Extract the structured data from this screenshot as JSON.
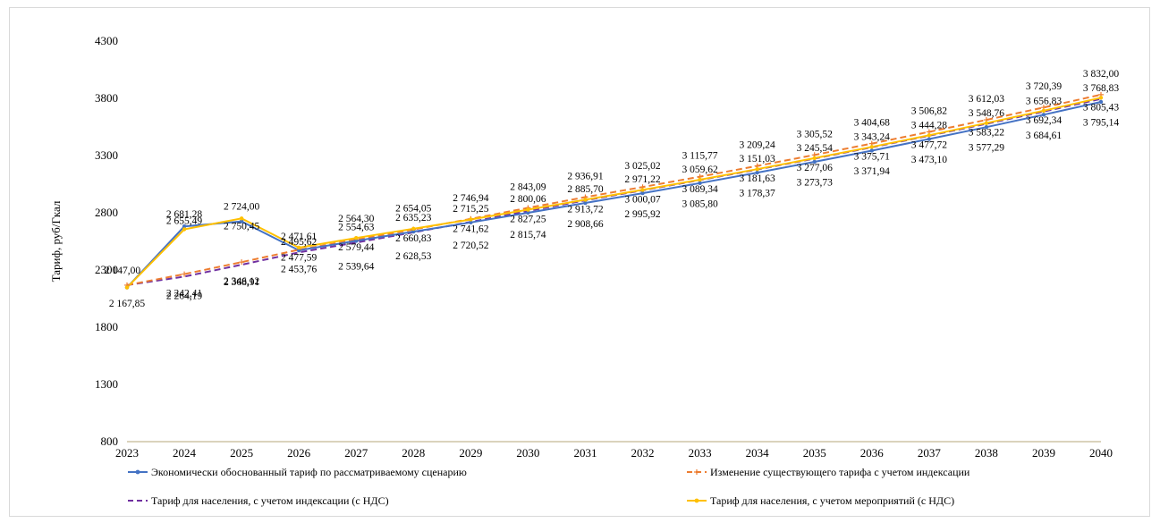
{
  "chart_data": {
    "type": "line",
    "title": "",
    "xlabel": "",
    "ylabel": "Тариф, руб/Гкал",
    "ylim": [
      800,
      4300
    ],
    "yticks": [
      800,
      1300,
      1800,
      2300,
      2800,
      3300,
      3800,
      4300
    ],
    "grid": false,
    "legend_position": "bottom",
    "x": [
      "2023",
      "2024",
      "2025",
      "2026",
      "2027",
      "2028",
      "2029",
      "2030",
      "2031",
      "2032",
      "2033",
      "2034",
      "2035",
      "2036",
      "2037",
      "2038",
      "2039",
      "2040"
    ],
    "series": [
      {
        "name": "Экономически обоснованный тариф по рассматриваемому сценарию",
        "color": "#4472c4",
        "style": "solid",
        "marker": "circle",
        "values": [
          2147.0,
          2681.28,
          2724.0,
          2471.61,
          2554.63,
          2635.23,
          2715.25,
          2800.06,
          2885.7,
          2971.22,
          3059.62,
          3151.03,
          3245.54,
          3343.24,
          3444.28,
          3548.76,
          3656.83,
          3768.83
        ],
        "labels": [
          "2 147,00",
          "2 681,28",
          "2 724,00",
          "2 471,61",
          "2 554,63",
          "2 635,23",
          "2 715,25",
          "2 800,06",
          "2 885,70",
          "2 971,22",
          "3 059,62",
          "3 151,03",
          "3 245,54",
          "3 343,24",
          "3 444,28",
          "3 548,76",
          "3 656,83",
          "3 768,83"
        ]
      },
      {
        "name": "Изменение существующего тарифа с учетом индексации",
        "color": "#ed7d31",
        "style": "dashed",
        "marker": "plus",
        "values": [
          2167.85,
          2264.19,
          2368.91,
          2477.59,
          2564.3,
          2654.05,
          2746.94,
          2843.09,
          2936.91,
          3025.02,
          3115.77,
          3209.24,
          3305.52,
          3404.68,
          3506.82,
          3612.03,
          3720.39,
          3832.0
        ],
        "labels": [
          "",
          "2 264,19",
          "2 368,91",
          "2 477,59",
          "2 564,30",
          "2 654,05",
          "2 746,94",
          "2 843,09",
          "2 936,91",
          "3 025,02",
          "3 115,77",
          "3 209,24",
          "3 305,52",
          "3 404,68",
          "3 506,82",
          "3 612,03",
          "3 720,39",
          "3 832,00"
        ]
      },
      {
        "name": "Тариф для населения, с учетом индексации (с НДС)",
        "color": "#7030a0",
        "style": "dashed",
        "marker": "none",
        "values": [
          2167.85,
          2242.41,
          2346.12,
          2453.76,
          2539.64,
          2628.53,
          2720.52,
          2815.74,
          2908.66,
          2995.92,
          3085.8,
          3178.37,
          3273.73,
          3371.94,
          3473.1,
          3577.29,
          3684.61,
          3795.14
        ],
        "labels": [
          "2 167,85",
          "2 242,41",
          "2 346,12",
          "2 453,76",
          "2 539,64",
          "2 628,53",
          "2 720,52",
          "2 815,74",
          "2 908,66",
          "2 995,92",
          "3 085,80",
          "3 178,37",
          "3 273,73",
          "3 371,94",
          "3 473,10",
          "3 577,29",
          "3 684,61",
          "3 795,14"
        ]
      },
      {
        "name": "Тариф для населения, с учетом мероприятий (с НДС)",
        "color": "#ffc000",
        "style": "solid",
        "marker": "circle",
        "values": [
          2147.0,
          2655.49,
          2750.45,
          2495.62,
          2579.44,
          2660.83,
          2741.62,
          2827.25,
          2913.72,
          3000.07,
          3089.34,
          3181.63,
          3277.06,
          3375.71,
          3477.72,
          3583.22,
          3692.34,
          3805.43
        ],
        "labels": [
          "",
          "2 655,49",
          "2 750,45",
          "2 495,62",
          "2 579,44",
          "2 660,83",
          "2 741,62",
          "2 827,25",
          "2 913,72",
          "3 000,07",
          "3 089,34",
          "3 181,63",
          "3 277,06",
          "3 375,71",
          "3 477,72",
          "3 583,22",
          "3 692,34",
          "3 805,43"
        ]
      }
    ]
  }
}
